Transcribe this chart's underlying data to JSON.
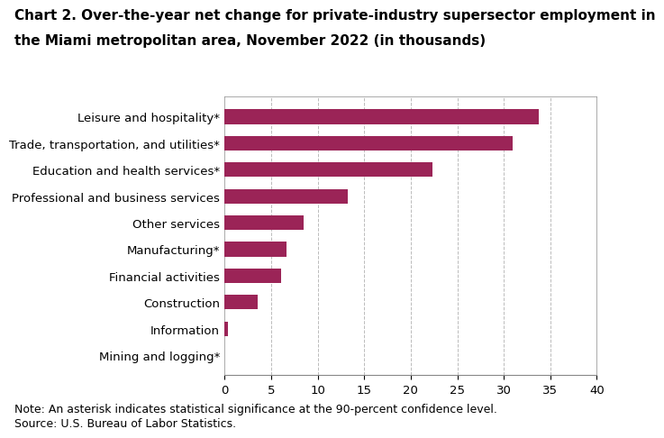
{
  "title_line1": "Chart 2. Over-the-year net change for private-industry supersector employment in",
  "title_line2": "the Miami metropolitan area, November 2022 (in thousands)",
  "categories": [
    "Mining and logging*",
    "Information",
    "Construction",
    "Financial activities",
    "Manufacturing*",
    "Other services",
    "Professional and business services",
    "Education and health services*",
    "Trade, transportation, and utilities*",
    "Leisure and hospitality*"
  ],
  "values": [
    0.0,
    0.3,
    3.5,
    6.1,
    6.6,
    8.5,
    13.2,
    22.3,
    31.0,
    33.8
  ],
  "bar_color": "#9b2457",
  "xlim": [
    0,
    40
  ],
  "xticks": [
    0,
    5,
    10,
    15,
    20,
    25,
    30,
    35,
    40
  ],
  "grid_color": "#bbbbbb",
  "note": "Note: An asterisk indicates statistical significance at the 90-percent confidence level.",
  "source": "Source: U.S. Bureau of Labor Statistics.",
  "title_fontsize": 11,
  "tick_fontsize": 9.5,
  "note_fontsize": 9,
  "background_color": "#ffffff"
}
